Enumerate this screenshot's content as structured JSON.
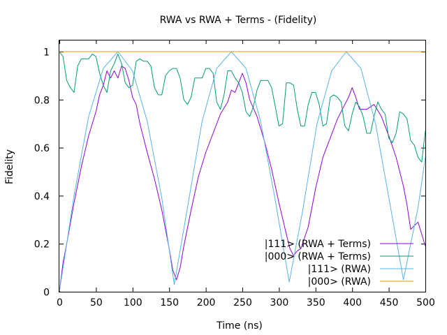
{
  "chart_data": {
    "type": "line",
    "title": "RWA vs RWA + Terms - (Fidelity)",
    "xlabel": "Time (ns)",
    "ylabel": "Fidelity",
    "xlim": [
      0,
      500
    ],
    "ylim": [
      0,
      1.05
    ],
    "xticks": [
      0,
      50,
      100,
      150,
      200,
      250,
      300,
      350,
      400,
      450,
      500
    ],
    "yticks": [
      0,
      0.2,
      0.4,
      0.6,
      0.8,
      1
    ],
    "ytick_labels": [
      "0",
      "0.2",
      "0.4",
      "0.6",
      "0.8",
      "1"
    ],
    "grid": false,
    "legend_position": "bottom-right",
    "series": [
      {
        "name": "|111> (RWA + Terms)",
        "color": "#9400d3",
        "x": [
          0,
          5,
          10,
          20,
          30,
          40,
          50,
          55,
          60,
          65,
          70,
          75,
          80,
          85,
          90,
          95,
          100,
          105,
          110,
          120,
          130,
          140,
          150,
          155,
          160,
          165,
          170,
          180,
          190,
          200,
          210,
          220,
          230,
          235,
          240,
          245,
          250,
          255,
          260,
          270,
          280,
          290,
          300,
          310,
          315,
          320,
          325,
          330,
          340,
          350,
          360,
          370,
          380,
          390,
          395,
          400,
          405,
          410,
          420,
          430,
          440,
          450,
          460,
          470,
          475,
          480,
          490,
          500
        ],
        "y": [
          0,
          0.12,
          0.2,
          0.37,
          0.52,
          0.65,
          0.75,
          0.82,
          0.86,
          0.92,
          0.89,
          0.92,
          0.89,
          0.94,
          0.93,
          0.88,
          0.81,
          0.78,
          0.7,
          0.58,
          0.47,
          0.34,
          0.18,
          0.09,
          0.05,
          0.1,
          0.19,
          0.34,
          0.48,
          0.58,
          0.66,
          0.74,
          0.79,
          0.84,
          0.83,
          0.87,
          0.91,
          0.87,
          0.8,
          0.73,
          0.63,
          0.51,
          0.37,
          0.24,
          0.18,
          0.15,
          0.17,
          0.18,
          0.27,
          0.43,
          0.56,
          0.64,
          0.72,
          0.78,
          0.81,
          0.85,
          0.81,
          0.76,
          0.76,
          0.78,
          0.73,
          0.65,
          0.56,
          0.44,
          0.36,
          0.26,
          0.29,
          0.19
        ]
      },
      {
        "name": "|000> (RWA + Terms)",
        "color": "#009e73",
        "x": [
          0,
          5,
          10,
          15,
          20,
          25,
          30,
          35,
          40,
          45,
          50,
          55,
          60,
          65,
          70,
          75,
          80,
          85,
          90,
          95,
          100,
          105,
          110,
          115,
          120,
          125,
          130,
          135,
          140,
          145,
          150,
          155,
          160,
          165,
          170,
          175,
          180,
          185,
          190,
          195,
          200,
          205,
          210,
          215,
          220,
          225,
          230,
          235,
          240,
          245,
          250,
          255,
          260,
          265,
          270,
          275,
          280,
          285,
          290,
          295,
          300,
          305,
          310,
          315,
          320,
          325,
          330,
          335,
          340,
          345,
          350,
          355,
          360,
          365,
          370,
          375,
          380,
          385,
          390,
          395,
          400,
          405,
          410,
          415,
          420,
          425,
          430,
          435,
          440,
          445,
          450,
          455,
          460,
          465,
          470,
          475,
          480,
          485,
          490,
          495,
          500
        ],
        "y": [
          1.0,
          0.98,
          0.88,
          0.85,
          0.83,
          0.94,
          0.97,
          0.97,
          0.97,
          0.99,
          0.98,
          0.91,
          0.86,
          0.83,
          0.92,
          0.95,
          0.99,
          0.95,
          0.87,
          0.85,
          0.86,
          0.96,
          0.97,
          0.96,
          0.96,
          0.94,
          0.85,
          0.82,
          0.82,
          0.9,
          0.92,
          0.93,
          0.93,
          0.89,
          0.8,
          0.78,
          0.81,
          0.89,
          0.89,
          0.89,
          0.93,
          0.93,
          0.91,
          0.79,
          0.76,
          0.82,
          0.92,
          0.92,
          0.89,
          0.87,
          0.83,
          0.75,
          0.73,
          0.77,
          0.84,
          0.88,
          0.88,
          0.88,
          0.85,
          0.77,
          0.69,
          0.7,
          0.87,
          0.87,
          0.86,
          0.76,
          0.69,
          0.69,
          0.78,
          0.83,
          0.83,
          0.78,
          0.69,
          0.7,
          0.81,
          0.82,
          0.81,
          0.79,
          0.69,
          0.67,
          0.74,
          0.79,
          0.77,
          0.73,
          0.66,
          0.66,
          0.73,
          0.79,
          0.76,
          0.74,
          0.64,
          0.62,
          0.66,
          0.75,
          0.74,
          0.72,
          0.63,
          0.61,
          0.56,
          0.54,
          0.67
        ]
      },
      {
        "name": "|111> (RWA)",
        "color": "#56b4e9",
        "x": [
          0,
          20,
          40,
          60,
          80,
          100,
          120,
          140,
          157,
          175,
          195,
          215,
          235,
          255,
          275,
          295,
          314,
          332,
          352,
          372,
          392,
          412,
          432,
          452,
          470,
          490,
          500
        ],
        "y": [
          0.0,
          0.4,
          0.73,
          0.93,
          1.0,
          0.92,
          0.71,
          0.39,
          0.03,
          0.35,
          0.71,
          0.93,
          1.0,
          0.93,
          0.71,
          0.38,
          0.04,
          0.33,
          0.7,
          0.92,
          1.0,
          0.93,
          0.7,
          0.36,
          0.05,
          0.35,
          0.56
        ]
      },
      {
        "name": "|000> (RWA)",
        "color": "#e69f00",
        "x": [
          0,
          500
        ],
        "y": [
          1,
          1
        ]
      }
    ]
  }
}
